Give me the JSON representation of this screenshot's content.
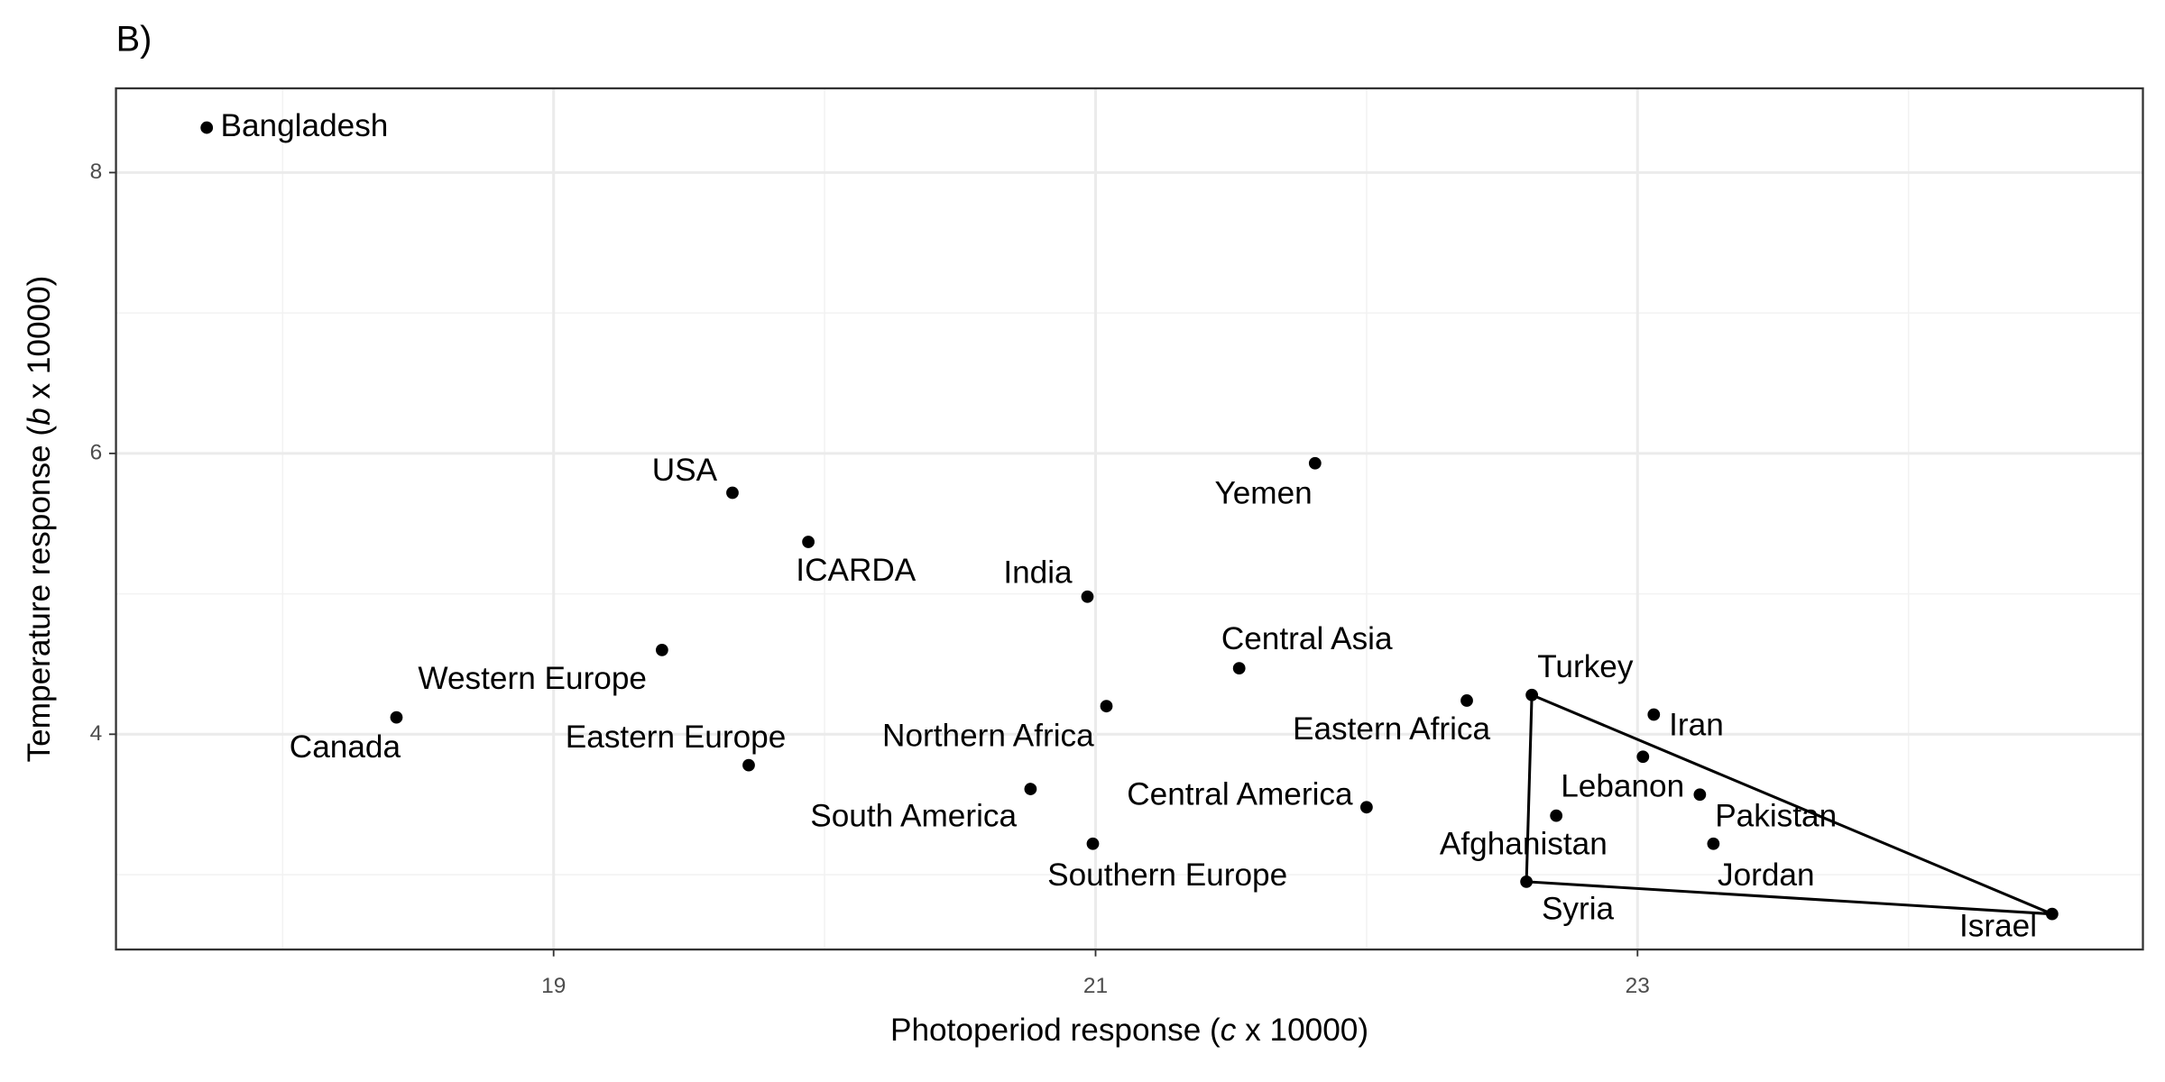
{
  "chart_data": {
    "type": "scatter",
    "panel_label": "B)",
    "x_label": [
      "Photoperiod response (",
      "c",
      " x 10000)"
    ],
    "y_label": [
      "Temperature response (",
      "b",
      " x 10000)"
    ],
    "labels": [
      "Bangladesh",
      "USA",
      "ICARDA",
      "India",
      "Yemen",
      "Central Asia",
      "Western Europe",
      "Canada",
      "Eastern Europe",
      "Northern Africa",
      "Eastern Africa",
      "South America",
      "Central America",
      "Southern Europe",
      "Turkey",
      "Iran",
      "Lebanon",
      "Pakistan",
      "Afghanistan",
      "Jordan",
      "Syria",
      "Israel"
    ],
    "x": [
      17.72,
      19.66,
      19.94,
      20.97,
      21.81,
      21.53,
      19.4,
      18.42,
      19.72,
      21.04,
      22.37,
      20.76,
      22.0,
      20.99,
      22.61,
      23.06,
      23.02,
      23.23,
      22.7,
      23.28,
      22.59,
      24.53
    ],
    "y": [
      8.32,
      5.72,
      5.37,
      4.98,
      5.93,
      4.47,
      4.6,
      4.12,
      3.78,
      4.2,
      4.24,
      3.61,
      3.48,
      3.22,
      4.28,
      4.14,
      3.84,
      3.57,
      3.42,
      3.22,
      2.95,
      2.72
    ],
    "color": "#000000",
    "hull": [
      14,
      20,
      21
    ],
    "xlim": [
      17.385,
      24.865
    ],
    "ylim": [
      2.467,
      8.6
    ],
    "xticks": [
      19,
      21,
      23
    ],
    "yticks": [
      4,
      6,
      8
    ],
    "grid": true
  }
}
